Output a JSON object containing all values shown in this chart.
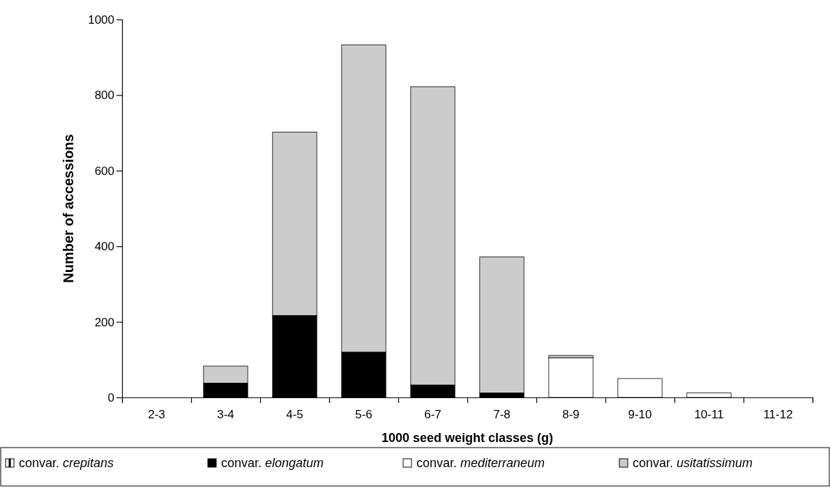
{
  "chart_data": {
    "type": "bar",
    "stacked": true,
    "xlabel": "1000 seed weight classes (g)",
    "ylabel": "Number of accessions",
    "categories": [
      "2-3",
      "3-4",
      "4-5",
      "5-6",
      "6-7",
      "7-8",
      "8-9",
      "9-10",
      "10-11",
      "11-12"
    ],
    "series": [
      {
        "name": "convar. crepitans",
        "color": "#ffffff",
        "values": [
          0,
          0,
          0,
          0,
          0,
          0,
          0,
          0,
          0,
          0
        ]
      },
      {
        "name": "convar. elongatum",
        "color": "#000000",
        "values": [
          0,
          38,
          217,
          120,
          33,
          12,
          0,
          0,
          0,
          0
        ]
      },
      {
        "name": "convar. mediterraneum",
        "color": "#ffffff",
        "values": [
          0,
          0,
          0,
          0,
          0,
          0,
          105,
          50,
          12,
          0
        ]
      },
      {
        "name": "convar. usitatissimum",
        "color": "#cccccc",
        "values": [
          0,
          45,
          485,
          813,
          789,
          360,
          6,
          0,
          0,
          0
        ]
      }
    ],
    "ylim": [
      0,
      1000
    ],
    "yticks": [
      0,
      200,
      400,
      600,
      800,
      1000
    ],
    "grid": false,
    "legend": "bottom"
  }
}
